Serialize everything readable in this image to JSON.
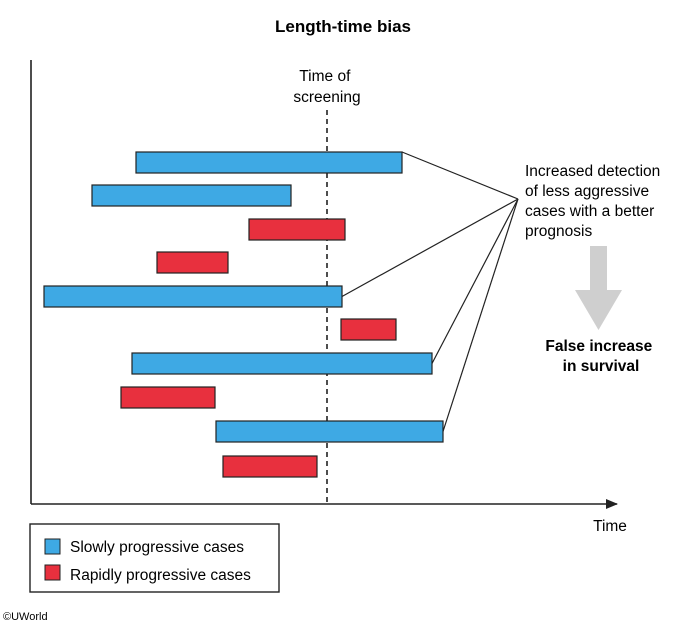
{
  "title": "Length-time bias",
  "screening_label": [
    "Time of",
    "screening"
  ],
  "x_axis_label": "Time",
  "annotation": [
    "Increased detection",
    "of less aggressive",
    "cases with a better",
    "prognosis"
  ],
  "result": [
    "False increase",
    "in survival"
  ],
  "legend": {
    "slow": "Slowly progressive cases",
    "rapid": "Rapidly progressive cases"
  },
  "credit": "©UWorld",
  "colors": {
    "slow": "#3ea9e4",
    "rapid": "#e8303e",
    "arrow": "#cfcfcf",
    "stroke": "#222222"
  },
  "cases": [
    {
      "type": "slow",
      "detected": true
    },
    {
      "type": "slow",
      "detected": false
    },
    {
      "type": "rapid",
      "detected": false
    },
    {
      "type": "rapid",
      "detected": false
    },
    {
      "type": "slow",
      "detected": true
    },
    {
      "type": "rapid",
      "detected": false
    },
    {
      "type": "slow",
      "detected": true
    },
    {
      "type": "rapid",
      "detected": false
    },
    {
      "type": "slow",
      "detected": true
    },
    {
      "type": "rapid",
      "detected": false
    }
  ]
}
